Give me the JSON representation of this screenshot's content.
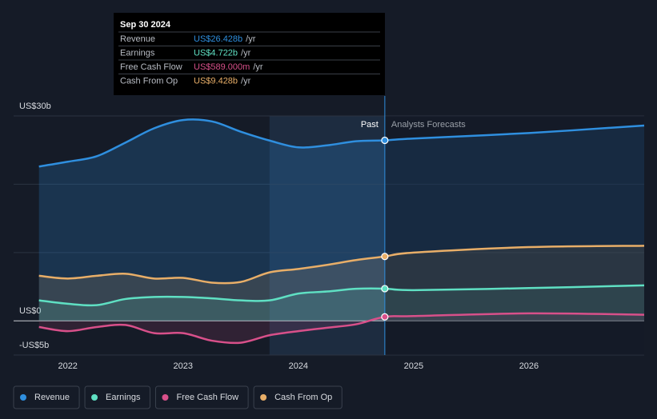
{
  "chart_data": {
    "type": "line",
    "x": [
      2021.75,
      2022,
      2022.25,
      2022.5,
      2022.75,
      2023,
      2023.25,
      2023.5,
      2023.75,
      2024,
      2024.25,
      2024.5,
      2024.75,
      2025,
      2026,
      2027
    ],
    "series": [
      {
        "name": "Revenue",
        "color": "#2f8fdf",
        "values": [
          22.6,
          23.3,
          24.1,
          26.1,
          28.2,
          29.4,
          29.2,
          27.7,
          26.4,
          25.4,
          25.7,
          26.3,
          26.428,
          26.7,
          27.5,
          28.6
        ]
      },
      {
        "name": "Earnings",
        "color": "#5fe0c3",
        "values": [
          3.0,
          2.5,
          2.3,
          3.2,
          3.5,
          3.5,
          3.3,
          3.0,
          3.0,
          4.0,
          4.3,
          4.7,
          4.722,
          4.5,
          4.8,
          5.2
        ]
      },
      {
        "name": "Free Cash Flow",
        "color": "#d8508a",
        "values": [
          -0.9,
          -1.5,
          -0.9,
          -0.6,
          -1.8,
          -1.8,
          -2.9,
          -3.2,
          -2.1,
          -1.5,
          -1.0,
          -0.5,
          0.589,
          0.7,
          1.1,
          0.9
        ]
      },
      {
        "name": "Cash From Op",
        "color": "#e8ae68",
        "values": [
          6.6,
          6.2,
          6.6,
          6.9,
          6.2,
          6.3,
          5.6,
          5.7,
          7.1,
          7.6,
          8.2,
          8.9,
          9.428,
          10.0,
          10.8,
          11.0
        ]
      }
    ],
    "xlim": [
      2021.53,
      2027.0
    ],
    "xticks": [
      2022,
      2023,
      2024,
      2025,
      2026
    ],
    "ylim": [
      -5,
      30
    ],
    "yticks": [
      {
        "value": -5,
        "label": "-US$5b"
      },
      {
        "value": 0,
        "label": "US$0"
      },
      {
        "value": 10,
        "label": null
      },
      {
        "value": 20,
        "label": null
      },
      {
        "value": 30,
        "label": "US$30b"
      }
    ],
    "grid": true,
    "forecast_start": 2024.75,
    "highlight": [
      2023.75,
      2024.75
    ],
    "past_label": "Past",
    "forecast_label": "Analysts Forecasts",
    "tooltip": {
      "date": "Sep 30 2024",
      "rows": [
        {
          "name": "Revenue",
          "value_label": "US$26.428b",
          "unit": "/yr"
        },
        {
          "name": "Earnings",
          "value_label": "US$4.722b",
          "unit": "/yr"
        },
        {
          "name": "Free Cash Flow",
          "value_label": "US$589.000m",
          "unit": "/yr"
        },
        {
          "name": "Cash From Op",
          "value_label": "US$9.428b",
          "unit": "/yr"
        }
      ]
    },
    "legend": "bottom-left"
  }
}
